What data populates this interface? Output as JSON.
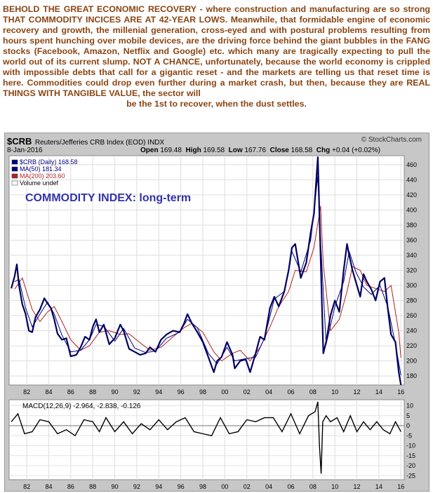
{
  "intro": {
    "lines": [
      "BEHOLD THE GREAT ECONOMIC RECOVERY - where construction and manufacturing are",
      "so strong THAT COMMODITY INCICES ARE AT 42-YEAR LOWS. Meanwhile, that formidable",
      "engine of economic recovery and growth, the millenial generation, cross-eyed and with",
      "postural problems resulting from hours spent hunching over mobile devices, are the",
      "driving force behind the giant bubbles in the FANG stocks (Facebook, Amazon, Netflix",
      "and Google) etc. which many are tragically expecting to pull the world out of its current",
      "slump. NOT A CHANCE, unfortunately, because the world economy is crippled with",
      "impossible debts that call for a gigantic reset - and the markets are telling us that",
      "reset time is here. Commodities could drop even further during a market crash,",
      "but then, because they are REAL THINGS WITH TANGIBLE VALUE, the sector will",
      "be the 1st to recover, when the dust settles."
    ]
  },
  "header": {
    "symbol": "$CRB",
    "description": "Reuters/Jefferies CRB Index (EOD) INDX",
    "watermark": "© StockCharts.com",
    "date": "8-Jan-2016",
    "open_label": "Open",
    "open": "169.48",
    "high_label": "High",
    "high": "169.58",
    "low_label": "Low",
    "low": "167.76",
    "close_label": "Close",
    "close": "168.58",
    "chg_label": "Chg",
    "chg": "+0.04 (+0.02%)"
  },
  "legend": [
    {
      "text": "$CRB (Daily) 168.58",
      "color": "#000080"
    },
    {
      "text": "MA(50) 181.34",
      "color": "#000080"
    },
    {
      "text": "MA(200) 203.60",
      "color": "#b22222"
    },
    {
      "text": "Volume undef",
      "color": "#000000"
    }
  ],
  "annotation": "COMMODITY INDEX: long-term",
  "macd_label": "MACD(12,26,9) -2.964, -2.838, -0.126",
  "colors": {
    "price": "#000060",
    "ma50": "#000080",
    "ma200": "#b22222",
    "annotation": "#3333aa",
    "intro_text": "#8b4513"
  },
  "chart_data": [
    {
      "type": "line",
      "title": "",
      "x_ticks": [
        "82",
        "84",
        "86",
        "88",
        "90",
        "92",
        "94",
        "96",
        "98",
        "00",
        "02",
        "04",
        "06",
        "08",
        "10",
        "12",
        "14",
        "16"
      ],
      "x_tick_years": [
        1982,
        1984,
        1986,
        1988,
        1990,
        1992,
        1994,
        1996,
        1998,
        2000,
        2002,
        2004,
        2006,
        2008,
        2010,
        2012,
        2014,
        2016
      ],
      "y_ticks": [
        180,
        200,
        220,
        240,
        260,
        280,
        300,
        320,
        340,
        360,
        380,
        400,
        420,
        440,
        460
      ],
      "ylim": [
        168,
        472
      ],
      "xlim": [
        1980.4,
        2016.3
      ],
      "grid": true,
      "series": [
        {
          "name": "$CRB (Daily) 168.58",
          "x": [
            1980.6,
            1980.9,
            1981.1,
            1981.3,
            1981.6,
            1981.9,
            1982.2,
            1982.5,
            1982.8,
            1983.2,
            1983.6,
            1983.9,
            1984.2,
            1984.5,
            1984.8,
            1985.2,
            1985.6,
            1986.0,
            1986.5,
            1986.9,
            1987.3,
            1987.7,
            1988.0,
            1988.3,
            1988.6,
            1989.0,
            1989.5,
            1990.0,
            1990.5,
            1990.8,
            1991.3,
            1991.8,
            1992.3,
            1992.8,
            1993.2,
            1993.7,
            1994.2,
            1994.7,
            1995.3,
            1995.9,
            1996.3,
            1996.6,
            1997.0,
            1997.5,
            1998.0,
            1998.5,
            1999.0,
            1999.3,
            1999.7,
            2000.2,
            2000.7,
            2000.9,
            2001.4,
            2001.9,
            2002.3,
            2002.8,
            2003.2,
            2003.6,
            2004.1,
            2004.5,
            2004.9,
            2005.4,
            2005.8,
            2006.1,
            2006.4,
            2006.9,
            2007.4,
            2007.8,
            2008.1,
            2008.45,
            2008.7,
            2008.95,
            2009.2,
            2009.6,
            2010.0,
            2010.4,
            2010.8,
            2011.1,
            2011.3,
            2011.6,
            2011.9,
            2012.3,
            2012.6,
            2012.9,
            2013.3,
            2013.7,
            2014.1,
            2014.5,
            2014.8,
            2015.1,
            2015.5,
            2015.8,
            2016.0
          ],
          "y": [
            296,
            312,
            328,
            300,
            275,
            262,
            240,
            238,
            258,
            268,
            283,
            276,
            270,
            255,
            236,
            228,
            230,
            206,
            208,
            218,
            232,
            228,
            245,
            255,
            238,
            248,
            222,
            230,
            248,
            240,
            216,
            212,
            208,
            210,
            218,
            212,
            228,
            235,
            240,
            238,
            250,
            262,
            250,
            238,
            225,
            205,
            185,
            200,
            205,
            225,
            208,
            190,
            200,
            202,
            185,
            210,
            232,
            228,
            270,
            285,
            272,
            292,
            320,
            350,
            355,
            310,
            330,
            370,
            395,
            470,
            340,
            210,
            225,
            260,
            280,
            265,
            320,
            355,
            340,
            320,
            305,
            285,
            315,
            305,
            295,
            280,
            305,
            310,
            270,
            235,
            225,
            185,
            168
          ]
        },
        {
          "name": "MA(50) 181.34",
          "x": [
            1980.9,
            1981.3,
            1981.9,
            1982.5,
            1983.2,
            1983.9,
            1984.5,
            1985.2,
            1986.0,
            1986.9,
            1987.7,
            1988.3,
            1989.0,
            1990.0,
            1990.8,
            1991.8,
            1992.8,
            1993.7,
            1994.7,
            1995.9,
            1996.6,
            1997.5,
            1998.5,
            1999.3,
            2000.2,
            2000.9,
            2001.9,
            2002.8,
            2003.6,
            2004.5,
            2005.4,
            2006.1,
            2006.9,
            2007.8,
            2008.45,
            2008.7,
            2009.2,
            2010.0,
            2010.8,
            2011.3,
            2011.9,
            2012.6,
            2013.3,
            2014.1,
            2014.8,
            2015.5,
            2016.0
          ],
          "y": [
            305,
            308,
            270,
            245,
            262,
            278,
            262,
            234,
            212,
            214,
            228,
            248,
            246,
            226,
            243,
            217,
            211,
            213,
            230,
            238,
            255,
            244,
            210,
            196,
            218,
            200,
            203,
            205,
            230,
            282,
            292,
            345,
            318,
            360,
            445,
            360,
            222,
            272,
            305,
            345,
            318,
            298,
            288,
            300,
            272,
            222,
            181
          ]
        },
        {
          "name": "MA(200) 203.60",
          "x": [
            1980.9,
            1981.6,
            1982.5,
            1983.2,
            1983.9,
            1984.5,
            1985.2,
            1986.0,
            1986.9,
            1987.7,
            1988.6,
            1989.5,
            1990.5,
            1991.3,
            1992.3,
            1993.2,
            1994.2,
            1995.3,
            1996.3,
            1997.0,
            1998.0,
            1999.0,
            1999.7,
            2000.7,
            2001.4,
            2002.3,
            2003.2,
            2004.1,
            2004.9,
            2005.8,
            2006.4,
            2007.4,
            2008.1,
            2008.7,
            2008.95,
            2009.6,
            2010.4,
            2011.1,
            2011.6,
            2012.3,
            2012.9,
            2013.7,
            2014.5,
            2015.1,
            2015.8,
            2016.0
          ],
          "y": [
            295,
            310,
            268,
            252,
            265,
            272,
            252,
            228,
            214,
            220,
            238,
            240,
            235,
            236,
            224,
            214,
            218,
            232,
            244,
            250,
            238,
            212,
            200,
            210,
            214,
            200,
            218,
            245,
            272,
            292,
            320,
            318,
            350,
            405,
            328,
            240,
            255,
            292,
            325,
            320,
            300,
            296,
            292,
            300,
            238,
            204
          ]
        }
      ]
    },
    {
      "type": "line",
      "title": "MACD(12,26,9) -2.964, -2.838, -0.126",
      "y_ticks": [
        10,
        5,
        0,
        -5,
        -10,
        -15,
        -20,
        -25
      ],
      "ylim": [
        -27,
        13
      ],
      "xlim": [
        1980.4,
        2016.3
      ],
      "grid": true,
      "series": [
        {
          "name": "MACD(12,26,9) -2.964, -2.838, -0.126",
          "x": [
            1980.6,
            1981.2,
            1981.8,
            1982.5,
            1983.2,
            1984.0,
            1984.8,
            1985.6,
            1986.4,
            1987.2,
            1988.0,
            1988.6,
            1989.2,
            1990.0,
            1990.8,
            1991.6,
            1992.4,
            1993.2,
            1994.0,
            1994.8,
            1995.6,
            1996.4,
            1997.2,
            1998.0,
            1998.8,
            1999.6,
            2000.4,
            2001.2,
            2002.0,
            2002.8,
            2003.6,
            2004.4,
            2005.2,
            2006.0,
            2006.8,
            2007.6,
            2008.2,
            2008.45,
            2008.6,
            2008.75,
            2008.9,
            2009.2,
            2009.6,
            2010.2,
            2010.8,
            2011.4,
            2012.0,
            2012.6,
            2013.2,
            2013.8,
            2014.4,
            2015.0,
            2015.5,
            2016.0
          ],
          "y": [
            2,
            6,
            -4,
            -3,
            3,
            2,
            -4,
            -2,
            -5,
            3,
            2,
            -3,
            4,
            -3,
            2,
            -4,
            1,
            -2,
            3,
            -2,
            2,
            4,
            -3,
            -4,
            -5,
            4,
            -4,
            -3,
            3,
            2,
            4,
            4,
            -3,
            6,
            -4,
            5,
            7,
            12,
            -10,
            -24,
            2,
            5,
            2,
            4,
            -3,
            5,
            -3,
            2,
            -2,
            2,
            -2,
            -4,
            2,
            -3
          ]
        }
      ]
    }
  ]
}
